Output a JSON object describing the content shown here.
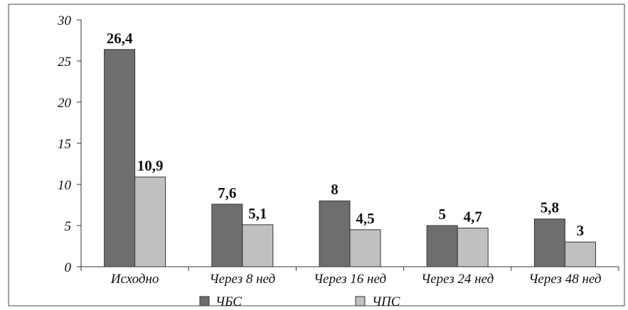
{
  "chart_data": {
    "type": "bar",
    "categories": [
      "Исходно",
      "Через 8 нед",
      "Через 16 нед",
      "Через 24 нед",
      "Через 48 нед"
    ],
    "series": [
      {
        "name": "ЧБС",
        "values": [
          26.4,
          7.6,
          8,
          5,
          5.8
        ],
        "labels": [
          "26,4",
          "7,6",
          "8",
          "5",
          "5,8"
        ],
        "color": "#6e6e6e"
      },
      {
        "name": "ЧПС",
        "values": [
          10.9,
          5.1,
          4.5,
          4.7,
          3
        ],
        "labels": [
          "10,9",
          "5,1",
          "4,5",
          "4,7",
          "3"
        ],
        "color": "#c0c0c0"
      }
    ],
    "yticks": [
      0,
      5,
      10,
      15,
      20,
      25,
      30
    ],
    "ylim": [
      0,
      30
    ],
    "grid": false,
    "legend_position": "bottom-center"
  }
}
